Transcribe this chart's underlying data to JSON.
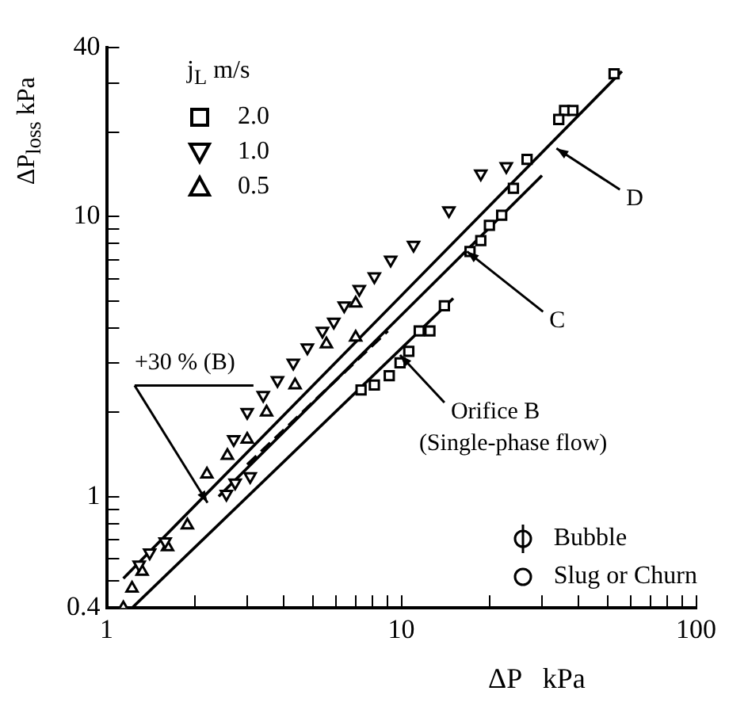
{
  "chart_data": {
    "type": "scatter",
    "xlabel": "ΔP   kPa",
    "ylabel": "ΔP$_{loss}$ kPa",
    "legend_title": "j$_{L}$ m/s",
    "legend": "top left",
    "log": "xy",
    "grid": false,
    "xlim": [
      1,
      100
    ],
    "ylim": [
      0.4,
      40
    ],
    "xticks": [
      1,
      {
        "value": 2,
        "label": null
      },
      {
        "value": 3,
        "label": null
      },
      {
        "value": 4,
        "label": null
      },
      {
        "value": 5,
        "label": null
      },
      {
        "value": 6,
        "label": null
      },
      {
        "value": 7,
        "label": null
      },
      {
        "value": 8,
        "label": null
      },
      {
        "value": 9,
        "label": null
      },
      10,
      {
        "value": 20,
        "label": null
      },
      {
        "value": 30,
        "label": null
      },
      {
        "value": 40,
        "label": null
      },
      {
        "value": 50,
        "label": null
      },
      {
        "value": 60,
        "label": null
      },
      {
        "value": 70,
        "label": null
      },
      {
        "value": 80,
        "label": null
      },
      {
        "value": 90,
        "label": null
      },
      100
    ],
    "yticks": [
      0.4,
      {
        "value": 0.5,
        "label": null
      },
      {
        "value": 0.6,
        "label": null
      },
      {
        "value": 0.7,
        "label": null
      },
      {
        "value": 0.8,
        "label": null
      },
      {
        "value": 0.9,
        "label": null
      },
      1,
      {
        "value": 2,
        "label": null
      },
      {
        "value": 3,
        "label": null
      },
      {
        "value": 4,
        "label": null
      },
      {
        "value": 5,
        "label": null
      },
      {
        "value": 6,
        "label": null
      },
      {
        "value": 7,
        "label": null
      },
      {
        "value": 8,
        "label": null
      },
      {
        "value": 9,
        "label": null
      },
      10,
      {
        "value": 20,
        "label": null
      },
      {
        "value": 30,
        "label": null
      },
      40
    ],
    "series": [
      {
        "name": "2.0",
        "marker": "square",
        "color": "#000000",
        "x": [
          52.7,
          35.8,
          38.2,
          34.2,
          26.7,
          24.0,
          21.9,
          19.9,
          18.6,
          17.1,
          14.0,
          12.5,
          11.5,
          10.6,
          9.9,
          9.1,
          8.1,
          7.3
        ],
        "values": [
          32.3,
          23.9,
          23.9,
          22.2,
          16.0,
          12.6,
          10.1,
          9.3,
          8.2,
          7.5,
          4.8,
          3.9,
          3.9,
          3.3,
          3.0,
          2.7,
          2.5,
          2.4
        ]
      },
      {
        "name": "1.0",
        "marker": "triangle-down",
        "color": "#000000",
        "x": [
          22.7,
          18.6,
          14.5,
          11.0,
          9.2,
          8.1,
          7.2,
          6.4,
          5.9,
          5.4,
          4.8,
          4.3,
          3.8,
          3.4,
          3.0,
          2.7,
          3.07,
          2.73,
          2.55,
          1.58,
          1.4,
          1.29
        ],
        "values": [
          15.1,
          14.2,
          10.5,
          7.9,
          7.0,
          6.1,
          5.5,
          4.8,
          4.2,
          3.9,
          3.4,
          3.0,
          2.6,
          2.3,
          2.0,
          1.6,
          1.18,
          1.12,
          1.02,
          0.69,
          0.63,
          0.57
        ]
      },
      {
        "name": "0.5",
        "marker": "triangle",
        "color": "#000000",
        "x": [
          7.0,
          7.0,
          5.57,
          4.36,
          3.49,
          3.0,
          2.57,
          2.19,
          1.88,
          1.61,
          1.32,
          1.22,
          1.14
        ],
        "values": [
          4.9,
          3.7,
          3.5,
          2.5,
          2.0,
          1.6,
          1.4,
          1.2,
          0.79,
          0.66,
          0.54,
          0.47,
          0.4
        ]
      },
      {
        "type": "line",
        "line_style": "solid",
        "color": "#000000",
        "x": [
          1.22,
          15
        ],
        "values": [
          0.4,
          5.1
        ]
      },
      {
        "type": "line",
        "line_style": "dashed",
        "color": "#000000",
        "x": [
          3,
          9
        ],
        "values": [
          1.3,
          3.9
        ]
      },
      {
        "type": "line",
        "line_style": "solid",
        "color": "#000000",
        "x": [
          2.4,
          30
        ],
        "values": [
          1.0,
          14
        ]
      },
      {
        "type": "line",
        "line_style": "solid",
        "color": "#000000",
        "x": [
          1.14,
          56
        ],
        "values": [
          0.51,
          33
        ]
      }
    ],
    "annotations": [
      {
        "text": "+30 % (B)",
        "x": 2.2,
        "y": 0.95
      },
      {
        "text": "C",
        "x": 16.7,
        "y": 7.5
      },
      {
        "text": "D",
        "x": 33.6,
        "y": 17.5
      },
      {
        "text": "Orifice B\n(Single-phase flow)",
        "x": 9.9,
        "y": 3.2
      },
      "Bubble",
      "Slug or Churn"
    ]
  }
}
